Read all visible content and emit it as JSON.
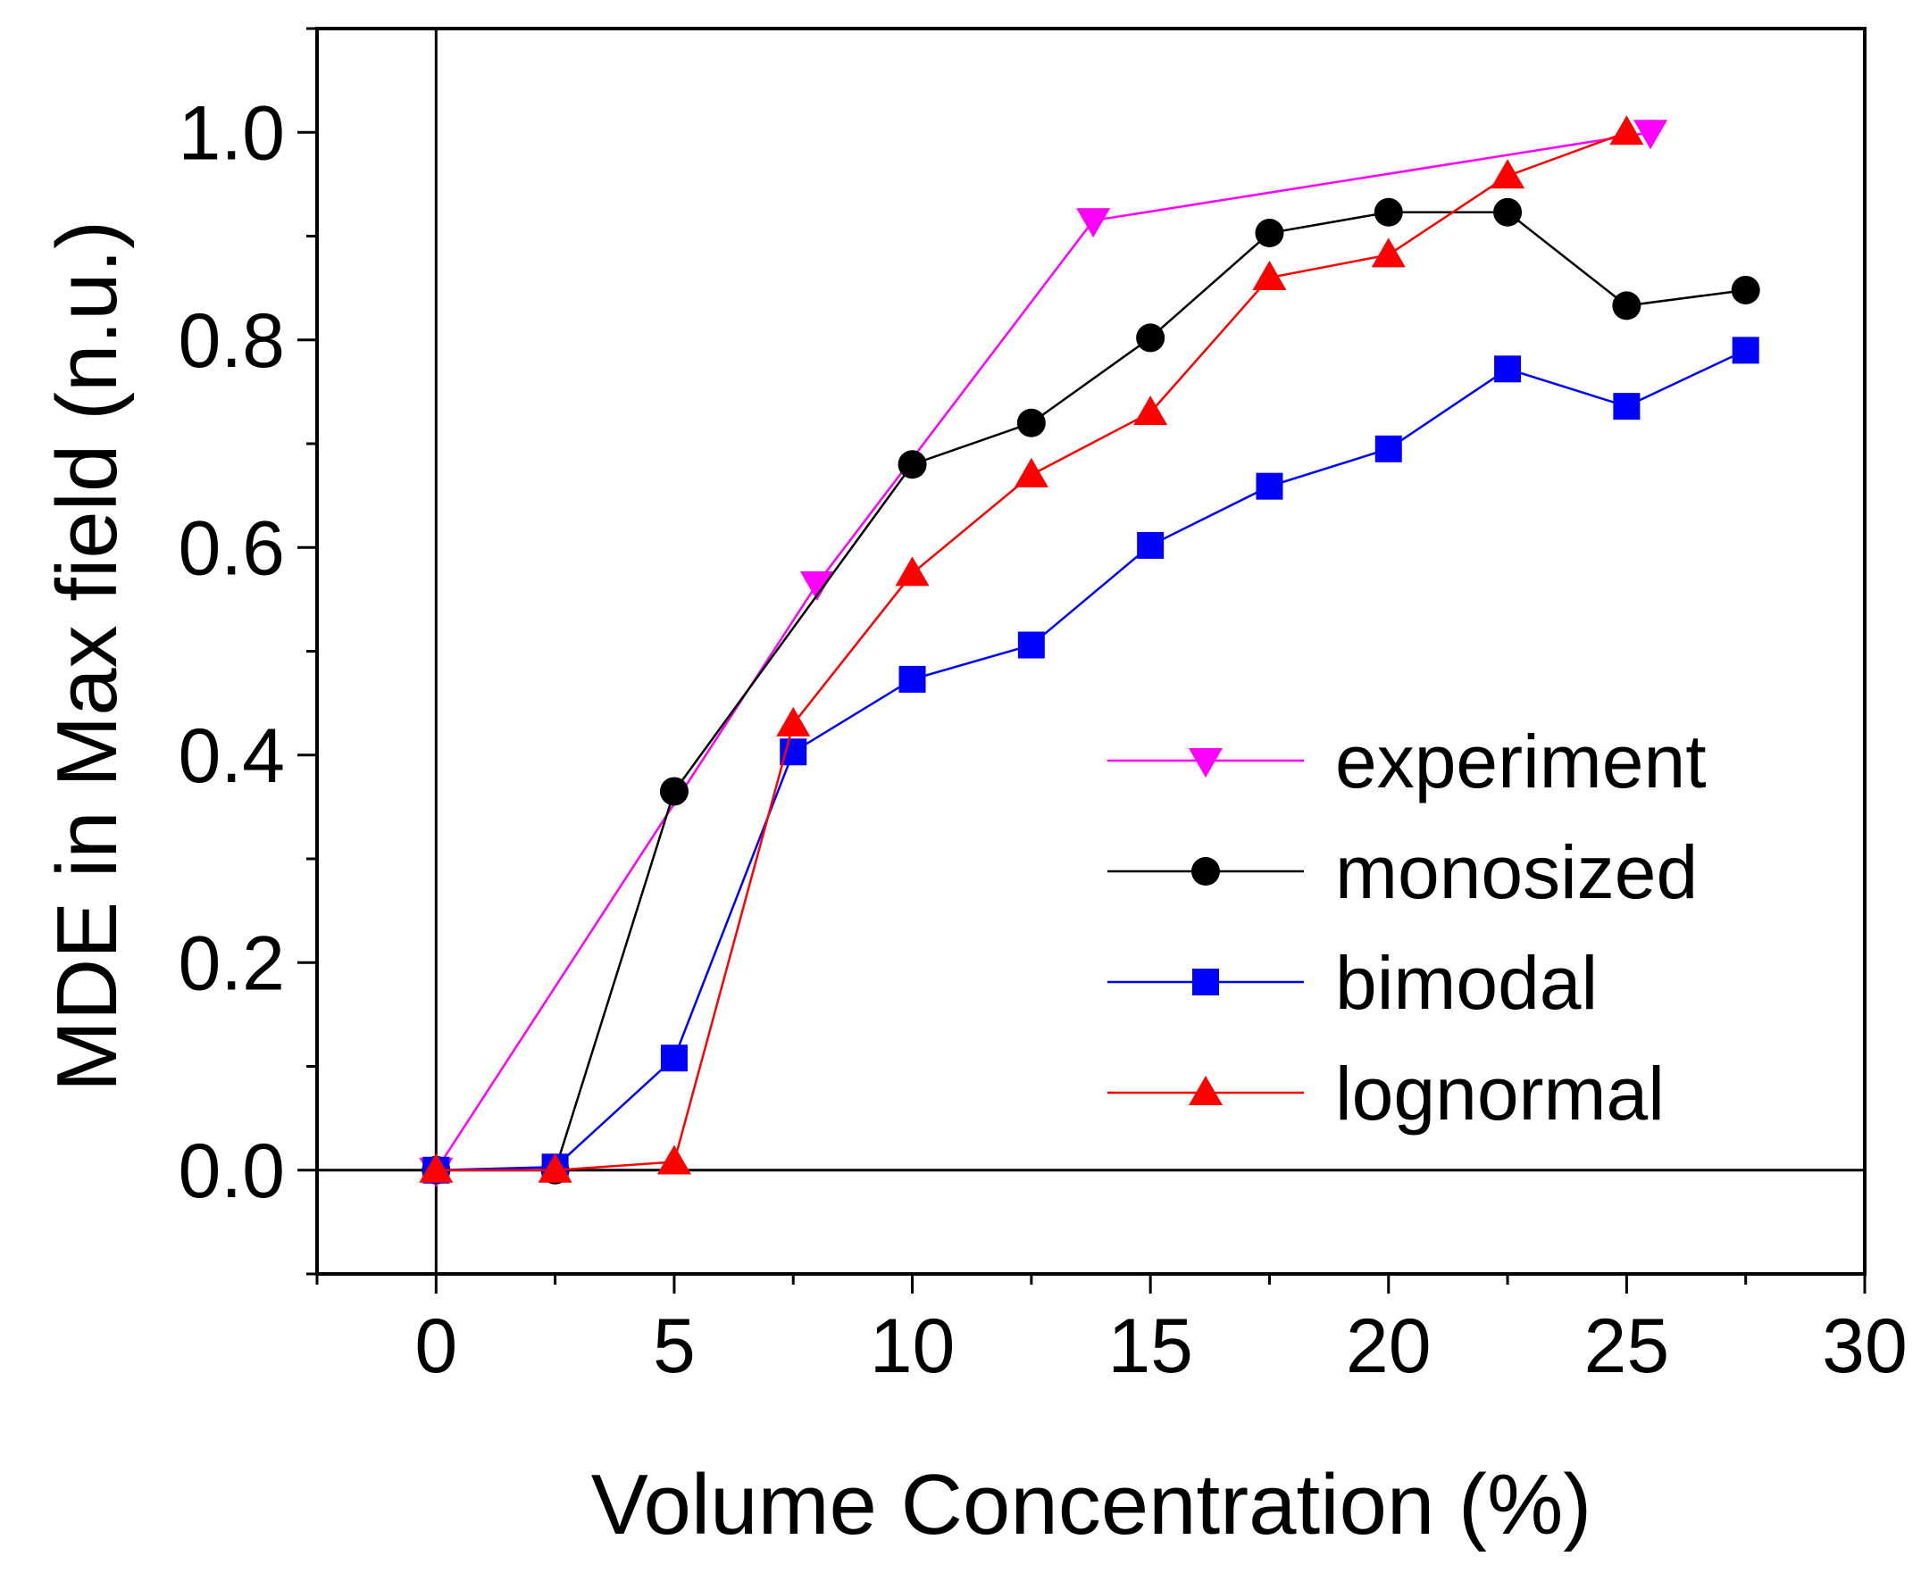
{
  "chart_data": {
    "type": "line",
    "xlabel": "Volume Concentration (%)",
    "ylabel": "MDE in Max field (n.u.)",
    "xlim": [
      -2.5,
      30
    ],
    "ylim": [
      -0.1,
      1.1
    ],
    "x_ticks": [
      "0",
      "5",
      "10",
      "15",
      "20",
      "25",
      "30"
    ],
    "y_ticks": [
      "0.0",
      "0.2",
      "0.4",
      "0.6",
      "0.8",
      "1.0"
    ],
    "reference_lines": {
      "x": 0,
      "y": 0
    },
    "grid": false,
    "legend_position": "lower-right",
    "series": [
      {
        "name": "experiment",
        "color": "#ff00ff",
        "marker": "triangle-down",
        "x": [
          0,
          8,
          13.8,
          25.5
        ],
        "y": [
          0.0,
          0.565,
          0.915,
          1.0
        ]
      },
      {
        "name": "monosized",
        "color": "#000000",
        "marker": "circle",
        "x": [
          0,
          2.5,
          5,
          10,
          12.5,
          15,
          17.5,
          20,
          22.5,
          25,
          27.5
        ],
        "y": [
          0.0,
          0.0,
          0.365,
          0.68,
          0.72,
          0.802,
          0.903,
          0.923,
          0.923,
          0.833,
          0.848
        ]
      },
      {
        "name": "bimodal",
        "color": "#0000ff",
        "marker": "square",
        "x": [
          0,
          2.5,
          5,
          7.5,
          10,
          12.5,
          15,
          17.5,
          20,
          22.5,
          25,
          27.5
        ],
        "y": [
          0.0,
          0.003,
          0.108,
          0.403,
          0.473,
          0.506,
          0.602,
          0.659,
          0.695,
          0.772,
          0.736,
          0.79
        ]
      },
      {
        "name": "lognormal",
        "color": "#ff0000",
        "marker": "triangle-up",
        "x": [
          0,
          2.5,
          5,
          7.5,
          10,
          12.5,
          15,
          17.5,
          20,
          22.5,
          25
        ],
        "y": [
          0.0,
          0.0,
          0.008,
          0.43,
          0.575,
          0.67,
          0.73,
          0.86,
          0.882,
          0.958,
          1.0
        ]
      }
    ]
  }
}
